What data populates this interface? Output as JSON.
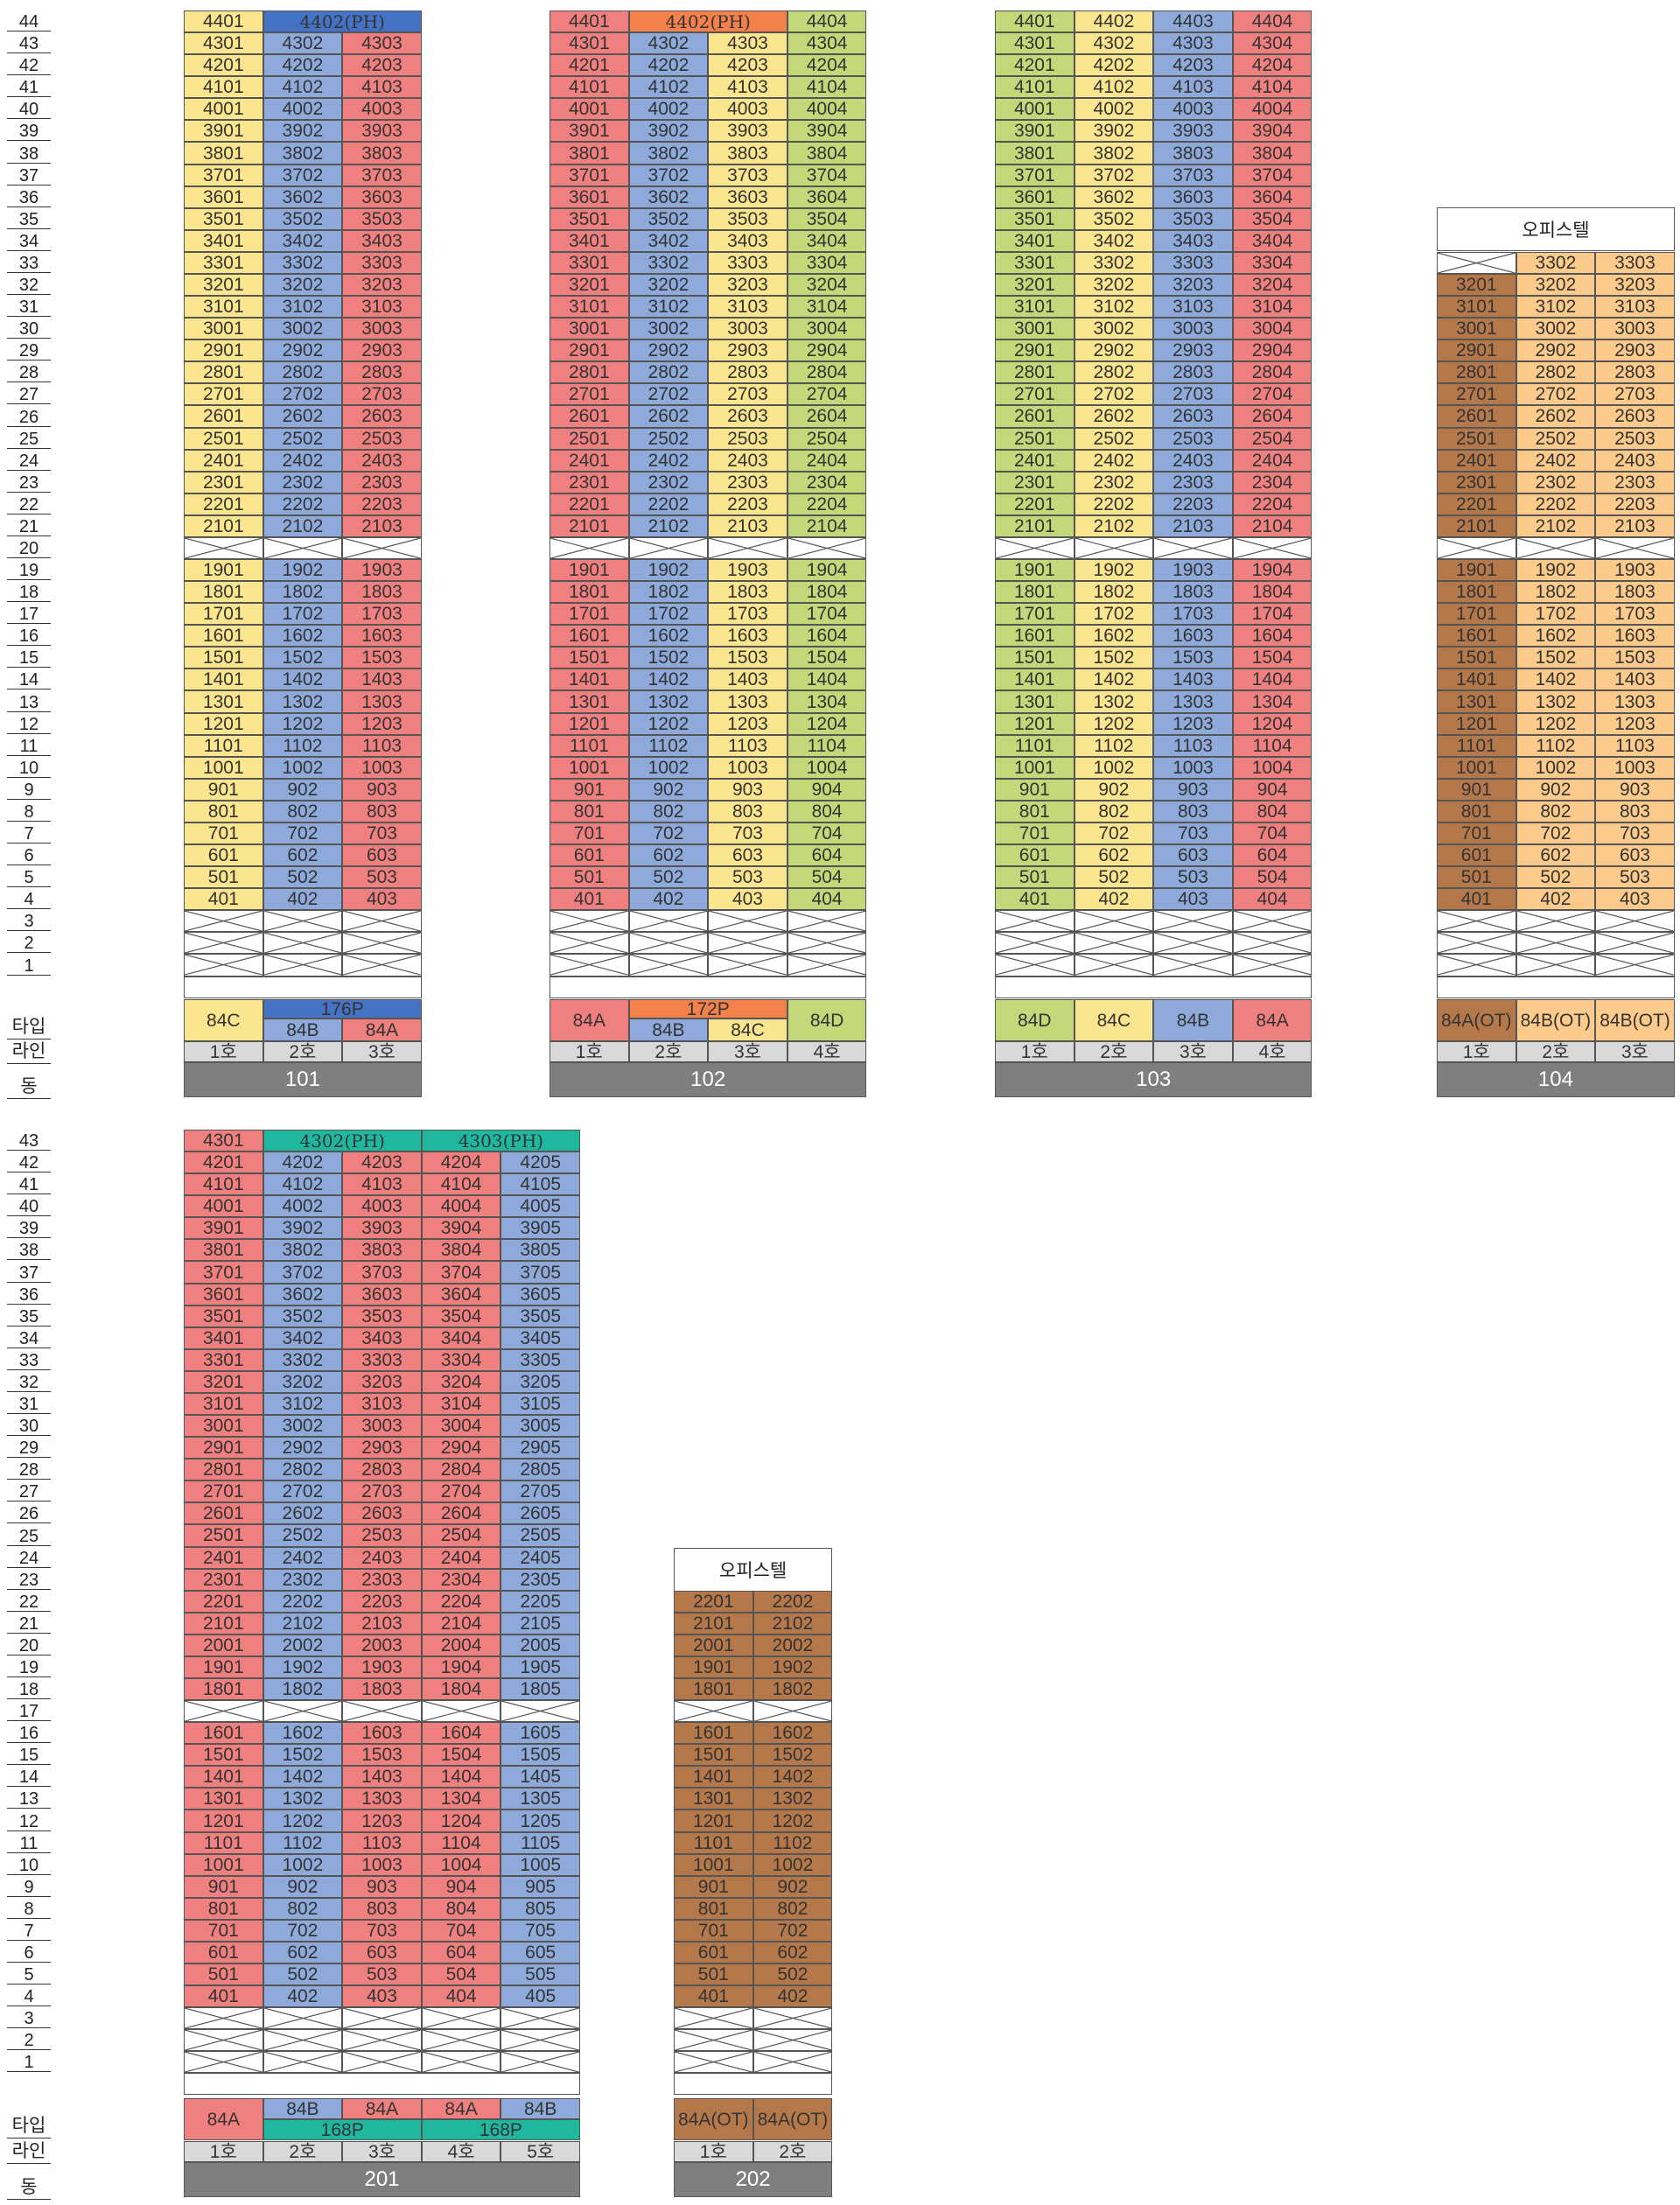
{
  "colors": {
    "yellow": "#fce58f",
    "blue": "#8eaadb",
    "red": "#f08080",
    "green": "#c3d979",
    "ph_blue": "#4472c4",
    "ph_orange": "#f4804c",
    "teal": "#1fb89f",
    "brown": "#b5784a",
    "peach": "#fcca8a",
    "gray_bar": "#7f7f7f",
    "line_bg": "#d9d9d9"
  },
  "row_labels": {
    "type": "타입",
    "line": "라인",
    "building": "동"
  },
  "office_label": "오피스텔",
  "buildings": [
    {
      "id": "101",
      "name": "101",
      "lines": [
        "1호",
        "2호",
        "3호"
      ],
      "line_colors": [
        "yellow",
        "blue",
        "red"
      ],
      "types": [
        "84C",
        "84B",
        "84A"
      ],
      "penthouse": {
        "unit": "4402(PH)",
        "type": "176P",
        "color": "ph_blue"
      }
    },
    {
      "id": "102",
      "name": "102",
      "lines": [
        "1호",
        "2호",
        "3호",
        "4호"
      ],
      "line_colors": [
        "red",
        "blue",
        "yellow",
        "green"
      ],
      "types": [
        "84A",
        "84B",
        "84C",
        "84D"
      ],
      "penthouse": {
        "unit": "4402(PH)",
        "type": "172P",
        "color": "ph_orange"
      }
    },
    {
      "id": "103",
      "name": "103",
      "lines": [
        "1호",
        "2호",
        "3호",
        "4호"
      ],
      "line_colors": [
        "green",
        "yellow",
        "blue",
        "red"
      ],
      "types": [
        "84D",
        "84C",
        "84B",
        "84A"
      ]
    },
    {
      "id": "104",
      "name": "104",
      "lines": [
        "1호",
        "2호",
        "3호"
      ],
      "line_colors": [
        "brown",
        "peach",
        "peach"
      ],
      "types": [
        "84A(OT)",
        "84B(OT)",
        "84B(OT)"
      ]
    },
    {
      "id": "201",
      "name": "201",
      "lines": [
        "1호",
        "2호",
        "3호",
        "4호",
        "5호"
      ],
      "line_colors": [
        "red",
        "blue",
        "red",
        "red",
        "blue"
      ],
      "types": [
        "84A",
        "84B",
        "84A",
        "84A",
        "84B"
      ],
      "penthouses": [
        {
          "unit": "4302(PH)",
          "type": "168P",
          "color": "teal"
        },
        {
          "unit": "4303(PH)",
          "type": "168P",
          "color": "teal"
        }
      ]
    },
    {
      "id": "202",
      "name": "202",
      "lines": [
        "1호",
        "2호"
      ],
      "line_colors": [
        "brown",
        "brown"
      ],
      "types": [
        "84A(OT)",
        "84A(OT)"
      ]
    }
  ]
}
